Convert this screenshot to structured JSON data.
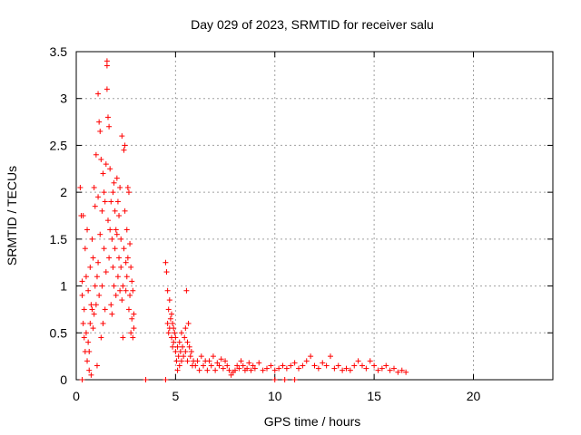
{
  "chart_data": {
    "type": "scatter",
    "title": "Day 029 of 2023, SRMTID for receiver salu",
    "xlabel": "GPS time / hours",
    "ylabel": "SRMTID / TECUs",
    "xlim": [
      0,
      24
    ],
    "ylim": [
      0,
      3.5
    ],
    "xticks": [
      0,
      5,
      10,
      15,
      20
    ],
    "yticks": [
      0,
      0.5,
      1,
      1.5,
      2,
      2.5,
      3,
      3.5
    ],
    "xtick_labels": [
      "0",
      "5",
      "10",
      "15",
      "20"
    ],
    "ytick_labels": [
      "0",
      "0.5",
      "1",
      "1.5",
      "2",
      "2.5",
      "3",
      "3.5"
    ],
    "grid": true,
    "marker": "+",
    "series": [
      {
        "name": "SRMTID",
        "color": "#ff0000",
        "points": [
          [
            0.2,
            2.05
          ],
          [
            0.25,
            1.75
          ],
          [
            0.3,
            1.05
          ],
          [
            0.3,
            0.9
          ],
          [
            0.35,
            1.75
          ],
          [
            0.35,
            0.6
          ],
          [
            0.4,
            0.45
          ],
          [
            0.4,
            0.75
          ],
          [
            0.45,
            1.4
          ],
          [
            0.45,
            0.3
          ],
          [
            0.5,
            1.1
          ],
          [
            0.5,
            0.5
          ],
          [
            0.55,
            1.6
          ],
          [
            0.55,
            0.2
          ],
          [
            0.6,
            0.95
          ],
          [
            0.6,
            0.4
          ],
          [
            0.65,
            0.1
          ],
          [
            0.65,
            0.3
          ],
          [
            0.7,
            0.6
          ],
          [
            0.7,
            1.2
          ],
          [
            0.75,
            0.8
          ],
          [
            0.75,
            0.05
          ],
          [
            0.8,
            0.75
          ],
          [
            0.8,
            1.5
          ],
          [
            0.85,
            1.3
          ],
          [
            0.85,
            0.55
          ],
          [
            0.9,
            0.7
          ],
          [
            0.9,
            2.05
          ],
          [
            0.95,
            1.0
          ],
          [
            0.95,
            1.85
          ],
          [
            1.0,
            2.4
          ],
          [
            1.0,
            0.8
          ],
          [
            1.05,
            1.1
          ],
          [
            1.05,
            0.15
          ],
          [
            1.1,
            1.95
          ],
          [
            1.1,
            1.25
          ],
          [
            1.1,
            3.05
          ],
          [
            1.15,
            2.75
          ],
          [
            1.15,
            0.9
          ],
          [
            1.2,
            1.55
          ],
          [
            1.2,
            2.65
          ],
          [
            1.25,
            0.45
          ],
          [
            1.25,
            2.35
          ],
          [
            1.3,
            1.8
          ],
          [
            1.3,
            1.0
          ],
          [
            1.35,
            2.2
          ],
          [
            1.35,
            0.6
          ],
          [
            1.4,
            1.4
          ],
          [
            1.4,
            2.0
          ],
          [
            1.45,
            1.9
          ],
          [
            1.45,
            0.75
          ],
          [
            1.5,
            2.3
          ],
          [
            1.5,
            1.15
          ],
          [
            1.55,
            3.4
          ],
          [
            1.55,
            3.35
          ],
          [
            1.55,
            3.1
          ],
          [
            1.6,
            2.8
          ],
          [
            1.6,
            1.7
          ],
          [
            1.65,
            2.7
          ],
          [
            1.65,
            1.3
          ],
          [
            1.7,
            1.6
          ],
          [
            1.7,
            2.25
          ],
          [
            1.75,
            0.8
          ],
          [
            1.75,
            1.9
          ],
          [
            1.8,
            1.5
          ],
          [
            1.8,
            0.7
          ],
          [
            1.85,
            2.0
          ],
          [
            1.85,
            1.2
          ],
          [
            1.9,
            2.1
          ],
          [
            1.9,
            1.0
          ],
          [
            1.95,
            1.8
          ],
          [
            1.95,
            1.4
          ],
          [
            2.0,
            1.6
          ],
          [
            2.0,
            0.9
          ],
          [
            2.05,
            2.15
          ],
          [
            2.05,
            1.55
          ],
          [
            2.1,
            1.9
          ],
          [
            2.1,
            1.1
          ],
          [
            2.15,
            1.3
          ],
          [
            2.15,
            1.75
          ],
          [
            2.2,
            0.95
          ],
          [
            2.2,
            2.05
          ],
          [
            2.25,
            1.5
          ],
          [
            2.25,
            1.2
          ],
          [
            2.3,
            2.6
          ],
          [
            2.3,
            0.85
          ],
          [
            2.35,
            1.0
          ],
          [
            2.35,
            0.45
          ],
          [
            2.4,
            2.45
          ],
          [
            2.4,
            1.4
          ],
          [
            2.45,
            2.5
          ],
          [
            2.45,
            1.8
          ],
          [
            2.5,
            1.25
          ],
          [
            2.5,
            0.95
          ],
          [
            2.55,
            1.6
          ],
          [
            2.55,
            1.1
          ],
          [
            2.6,
            2.05
          ],
          [
            2.6,
            1.3
          ],
          [
            2.65,
            2.0
          ],
          [
            2.65,
            0.75
          ],
          [
            2.7,
            1.45
          ],
          [
            2.7,
            0.9
          ],
          [
            2.75,
            1.2
          ],
          [
            2.75,
            0.5
          ],
          [
            2.8,
            0.65
          ],
          [
            2.8,
            1.05
          ],
          [
            2.85,
            0.45
          ],
          [
            2.85,
            0.95
          ],
          [
            2.9,
            0.7
          ],
          [
            2.9,
            0.55
          ],
          [
            4.5,
            1.25
          ],
          [
            4.55,
            1.15
          ],
          [
            4.6,
            0.95
          ],
          [
            4.6,
            0.6
          ],
          [
            4.65,
            0.75
          ],
          [
            4.65,
            0.5
          ],
          [
            4.7,
            0.55
          ],
          [
            4.7,
            0.85
          ],
          [
            4.75,
            0.65
          ],
          [
            4.8,
            0.45
          ],
          [
            4.8,
            0.7
          ],
          [
            4.85,
            0.35
          ],
          [
            4.85,
            0.6
          ],
          [
            4.9,
            0.4
          ],
          [
            4.9,
            0.55
          ],
          [
            4.95,
            0.5
          ],
          [
            5.0,
            0.3
          ],
          [
            5.0,
            0.45
          ],
          [
            5.05,
            0.2
          ],
          [
            5.1,
            0.35
          ],
          [
            5.1,
            0.1
          ],
          [
            5.15,
            0.25
          ],
          [
            5.2,
            0.4
          ],
          [
            5.2,
            0.15
          ],
          [
            5.25,
            0.3
          ],
          [
            5.3,
            0.5
          ],
          [
            5.3,
            0.2
          ],
          [
            5.35,
            0.35
          ],
          [
            5.4,
            0.25
          ],
          [
            5.45,
            0.45
          ],
          [
            5.5,
            0.55
          ],
          [
            5.5,
            0.3
          ],
          [
            5.55,
            0.95
          ],
          [
            5.6,
            0.4
          ],
          [
            5.6,
            0.2
          ],
          [
            5.65,
            0.6
          ],
          [
            5.7,
            0.35
          ],
          [
            5.75,
            0.25
          ],
          [
            5.8,
            0.3
          ],
          [
            5.85,
            0.15
          ],
          [
            5.9,
            0.2
          ],
          [
            6.0,
            0.15
          ],
          [
            6.1,
            0.2
          ],
          [
            6.2,
            0.1
          ],
          [
            6.3,
            0.25
          ],
          [
            6.4,
            0.15
          ],
          [
            6.5,
            0.2
          ],
          [
            6.6,
            0.1
          ],
          [
            6.7,
            0.2
          ],
          [
            6.8,
            0.15
          ],
          [
            6.9,
            0.25
          ],
          [
            7.0,
            0.1
          ],
          [
            7.1,
            0.18
          ],
          [
            7.2,
            0.15
          ],
          [
            7.3,
            0.22
          ],
          [
            7.4,
            0.12
          ],
          [
            7.5,
            0.2
          ],
          [
            7.6,
            0.15
          ],
          [
            7.7,
            0.1
          ],
          [
            7.8,
            0.05
          ],
          [
            7.9,
            0.08
          ],
          [
            8.0,
            0.1
          ],
          [
            8.1,
            0.15
          ],
          [
            8.2,
            0.12
          ],
          [
            8.3,
            0.2
          ],
          [
            8.4,
            0.15
          ],
          [
            8.5,
            0.1
          ],
          [
            8.6,
            0.12
          ],
          [
            8.7,
            0.18
          ],
          [
            8.8,
            0.1
          ],
          [
            8.9,
            0.15
          ],
          [
            9.0,
            0.12
          ],
          [
            9.2,
            0.18
          ],
          [
            9.4,
            0.1
          ],
          [
            9.6,
            0.12
          ],
          [
            9.8,
            0.15
          ],
          [
            10.0,
            0.1
          ],
          [
            10.2,
            0.12
          ],
          [
            10.4,
            0.15
          ],
          [
            10.6,
            0.12
          ],
          [
            10.8,
            0.15
          ],
          [
            11.0,
            0.18
          ],
          [
            11.2,
            0.12
          ],
          [
            11.4,
            0.15
          ],
          [
            11.6,
            0.2
          ],
          [
            11.8,
            0.25
          ],
          [
            12.0,
            0.15
          ],
          [
            12.2,
            0.12
          ],
          [
            12.4,
            0.18
          ],
          [
            12.6,
            0.15
          ],
          [
            12.8,
            0.25
          ],
          [
            13.0,
            0.12
          ],
          [
            13.2,
            0.15
          ],
          [
            13.4,
            0.1
          ],
          [
            13.6,
            0.12
          ],
          [
            13.8,
            0.1
          ],
          [
            14.0,
            0.15
          ],
          [
            14.2,
            0.2
          ],
          [
            14.4,
            0.15
          ],
          [
            14.6,
            0.12
          ],
          [
            14.8,
            0.2
          ],
          [
            15.0,
            0.15
          ],
          [
            15.2,
            0.1
          ],
          [
            15.4,
            0.12
          ],
          [
            15.6,
            0.15
          ],
          [
            15.8,
            0.1
          ],
          [
            16.0,
            0.12
          ],
          [
            16.2,
            0.08
          ],
          [
            16.4,
            0.1
          ],
          [
            16.6,
            0.08
          ],
          [
            0.3,
            0.0
          ],
          [
            3.5,
            0.0
          ],
          [
            4.5,
            0.0
          ],
          [
            10.0,
            0.0
          ],
          [
            10.5,
            0.0
          ],
          [
            11.0,
            0.0
          ]
        ]
      }
    ]
  }
}
